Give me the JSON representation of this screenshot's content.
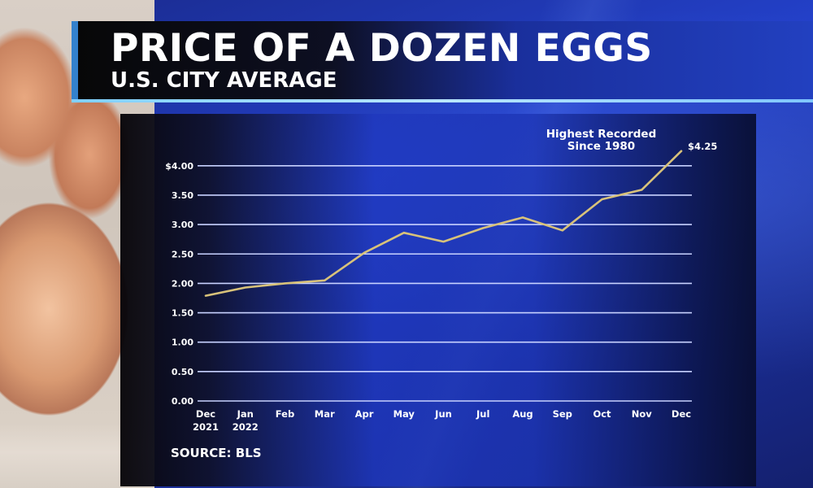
{
  "header": {
    "title": "PRICE OF A DOZEN EGGS",
    "subtitle": "U.S. CITY AVERAGE"
  },
  "annotation": {
    "line1": "Highest Recorded",
    "line2": "Since 1980",
    "value_label": "$4.25"
  },
  "source": "SOURCE: BLS",
  "colors": {
    "line": "#d8c27a",
    "grid": "#c8d2ff",
    "panel_blue": "#2340c8",
    "title_accent": "#7fd0ff"
  },
  "chart_data": {
    "type": "line",
    "title": "PRICE OF A DOZEN EGGS",
    "subtitle": "U.S. CITY AVERAGE",
    "xlabel": "",
    "ylabel": "",
    "categories": [
      "Dec 2021",
      "Jan 2022",
      "Feb",
      "Mar",
      "Apr",
      "May",
      "Jun",
      "Jul",
      "Aug",
      "Sep",
      "Oct",
      "Nov",
      "Dec"
    ],
    "x_tick_labels": [
      [
        "Dec",
        "2021"
      ],
      [
        "Jan",
        "2022"
      ],
      [
        "Feb",
        ""
      ],
      [
        "Mar",
        ""
      ],
      [
        "Apr",
        ""
      ],
      [
        "May",
        ""
      ],
      [
        "Jun",
        ""
      ],
      [
        "Jul",
        ""
      ],
      [
        "Aug",
        ""
      ],
      [
        "Sep",
        ""
      ],
      [
        "Oct",
        ""
      ],
      [
        "Nov",
        ""
      ],
      [
        "Dec",
        ""
      ]
    ],
    "series": [
      {
        "name": "Price of a dozen eggs (USD)",
        "values": [
          1.79,
          1.93,
          2.0,
          2.05,
          2.52,
          2.86,
          2.71,
          2.94,
          3.12,
          2.9,
          3.43,
          3.59,
          4.25
        ]
      }
    ],
    "y_ticks": [
      0.0,
      0.5,
      1.0,
      1.5,
      2.0,
      2.5,
      3.0,
      3.5,
      4.0
    ],
    "y_tick_labels": [
      "0.00",
      "0.50",
      "1.00",
      "1.50",
      "2.00",
      "2.50",
      "3.00",
      "3.50",
      "$4.00"
    ],
    "ylim": [
      0,
      4.25
    ],
    "grid": true,
    "legend": "none",
    "annotations": [
      {
        "text": "Highest Recorded Since 1980",
        "at": "Dec"
      },
      {
        "text": "$4.25",
        "at": "Dec"
      }
    ],
    "source": "SOURCE: BLS"
  }
}
